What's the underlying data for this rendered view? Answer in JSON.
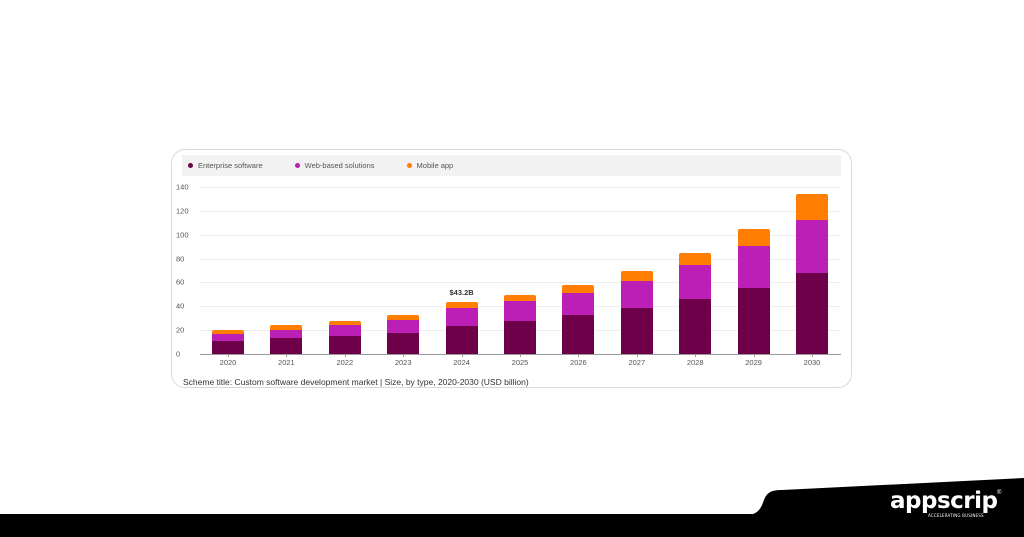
{
  "legend": {
    "items": [
      {
        "label": "Enterprise software",
        "color": "#6d0049"
      },
      {
        "label": "Web-based solutions",
        "color": "#bb1fb5"
      },
      {
        "label": "Mobile app",
        "color": "#ff7d00"
      }
    ]
  },
  "caption": "Scheme title: Custom software development market | Size, by type, 2020-2030 (USD billion)",
  "annotation": {
    "label": "$43.2B",
    "year": "2024"
  },
  "brand": {
    "logo_text": "appscrip",
    "tagline": "ACCELERATING BUSINESS",
    "registered": "®"
  },
  "chart_data": {
    "type": "bar",
    "stacked": true,
    "title": "Custom software development market | Size, by type, 2020-2030 (USD billion)",
    "xlabel": "",
    "ylabel": "",
    "ylim": [
      0,
      140
    ],
    "yticks": [
      0,
      20,
      40,
      60,
      80,
      100,
      120,
      140
    ],
    "grid": true,
    "legend_position": "top",
    "categories": [
      "2020",
      "2021",
      "2022",
      "2023",
      "2024",
      "2025",
      "2026",
      "2027",
      "2028",
      "2029",
      "2030"
    ],
    "series": [
      {
        "name": "Enterprise software",
        "color": "#6d0049",
        "values": [
          11,
          13,
          15,
          18,
          23.6,
          28,
          33,
          38.6,
          46.5,
          55.5,
          67.5
        ]
      },
      {
        "name": "Web-based solutions",
        "color": "#bb1fb5",
        "values": [
          6,
          7,
          9,
          10.5,
          14.7,
          16.5,
          18.5,
          22.5,
          28,
          35,
          45
        ]
      },
      {
        "name": "Mobile app",
        "color": "#ff7d00",
        "values": [
          3,
          4,
          4,
          4.5,
          4.9,
          5,
          6.5,
          8.3,
          10,
          14,
          21.5
        ]
      }
    ],
    "annotations": [
      {
        "category": "2024",
        "text": "$43.2B"
      }
    ]
  }
}
